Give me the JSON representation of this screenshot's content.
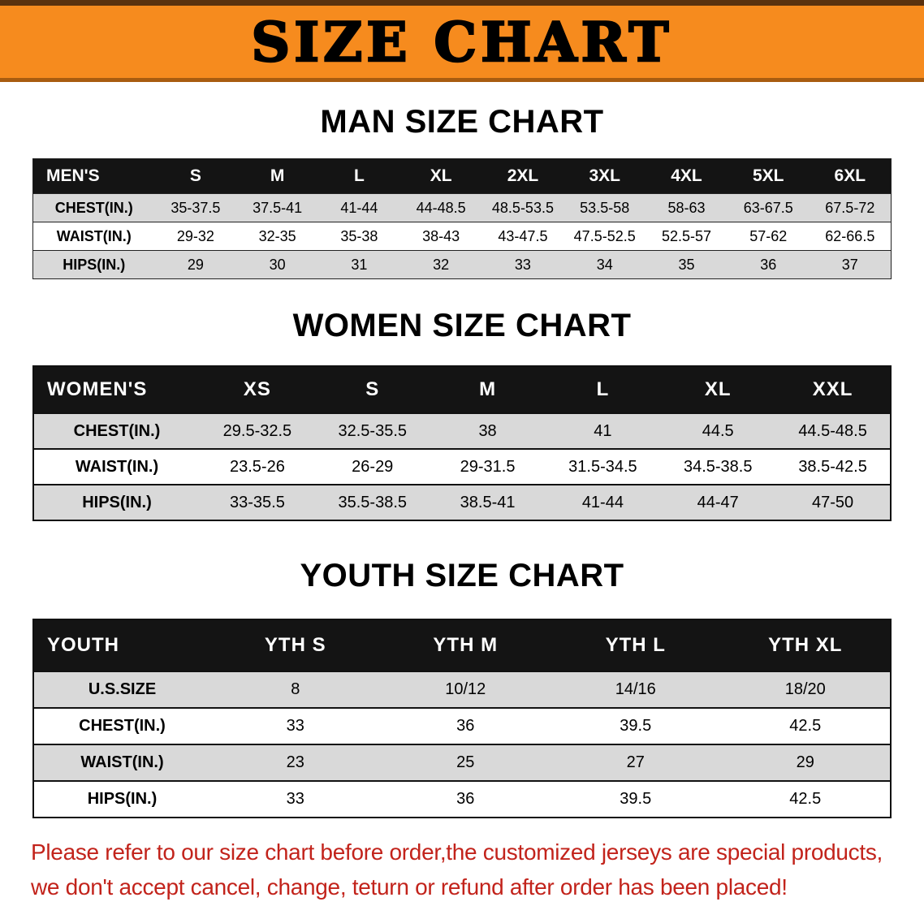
{
  "banner": {
    "title": "SIZE CHART"
  },
  "men": {
    "heading": "MAN SIZE CHART",
    "header": [
      "MEN'S",
      "S",
      "M",
      "L",
      "XL",
      "2XL",
      "3XL",
      "4XL",
      "5XL",
      "6XL"
    ],
    "rows": [
      {
        "label": "CHEST(IN.)",
        "values": [
          "35-37.5",
          "37.5-41",
          "41-44",
          "44-48.5",
          "48.5-53.5",
          "53.5-58",
          "58-63",
          "63-67.5",
          "67.5-72"
        ]
      },
      {
        "label": "WAIST(IN.)",
        "values": [
          "29-32",
          "32-35",
          "35-38",
          "38-43",
          "43-47.5",
          "47.5-52.5",
          "52.5-57",
          "57-62",
          "62-66.5"
        ]
      },
      {
        "label": "HIPS(IN.)",
        "values": [
          "29",
          "30",
          "31",
          "32",
          "33",
          "34",
          "35",
          "36",
          "37"
        ]
      }
    ]
  },
  "women": {
    "heading": "WOMEN SIZE CHART",
    "header": [
      "WOMEN'S",
      "XS",
      "S",
      "M",
      "L",
      "XL",
      "XXL"
    ],
    "rows": [
      {
        "label": "CHEST(IN.)",
        "values": [
          "29.5-32.5",
          "32.5-35.5",
          "38",
          "41",
          "44.5",
          "44.5-48.5"
        ]
      },
      {
        "label": "WAIST(IN.)",
        "values": [
          "23.5-26",
          "26-29",
          "29-31.5",
          "31.5-34.5",
          "34.5-38.5",
          "38.5-42.5"
        ]
      },
      {
        "label": "HIPS(IN.)",
        "values": [
          "33-35.5",
          "35.5-38.5",
          "38.5-41",
          "41-44",
          "44-47",
          "47-50"
        ]
      }
    ]
  },
  "youth": {
    "heading": "YOUTH SIZE CHART",
    "header": [
      "YOUTH",
      "YTH S",
      "YTH M",
      "YTH L",
      "YTH XL"
    ],
    "rows": [
      {
        "label": "U.S.SIZE",
        "values": [
          "8",
          "10/12",
          "14/16",
          "18/20"
        ]
      },
      {
        "label": "CHEST(IN.)",
        "values": [
          "33",
          "36",
          "39.5",
          "42.5"
        ]
      },
      {
        "label": "WAIST(IN.)",
        "values": [
          "23",
          "25",
          "27",
          "29"
        ]
      },
      {
        "label": "HIPS(IN.)",
        "values": [
          "33",
          "36",
          "39.5",
          "42.5"
        ]
      }
    ]
  },
  "disclaimer": {
    "line1": "Please refer to our size chart before order,the customized jerseys are special products,",
    "line2": "we don't accept cancel, change, teturn or refund after order has been placed!"
  },
  "colors": {
    "banner_orange": "#f68b1e",
    "banner_edge_top": "#5a320f",
    "banner_edge_bottom": "#a85c10",
    "header_black": "#141414",
    "row_gray": "#d9d9d9",
    "disclaimer_red": "#c2231b"
  }
}
